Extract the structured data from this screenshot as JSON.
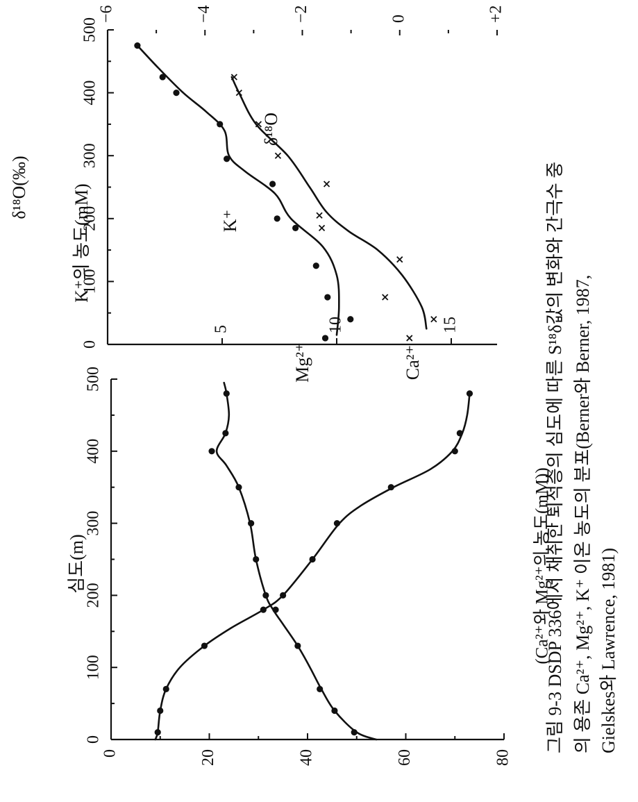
{
  "caption": {
    "lines": [
      "그림 9-3  DSDP 336에서 채취한 퇴적층의 심도에 따른 S¹⁸δ값의 변화와 간극수 중",
      "의 용존 Ca²⁺, Mg²⁺, K⁺ 이온 농도의 분포(Berner와 Berner, 1987,",
      "Gielskes와 Lawrence, 1981)"
    ]
  },
  "chart_data": [
    {
      "type": "line",
      "xlabel": "심도(m)",
      "ylabel": "(Ca²⁺와 Mg²⁺의 농도(mM))",
      "xlim": [
        0,
        500
      ],
      "ylim": [
        0,
        80
      ],
      "xticks": [
        0,
        100,
        200,
        300,
        400,
        500
      ],
      "yticks": [
        0,
        20,
        40,
        60,
        80
      ],
      "series": [
        {
          "name": "Ca²⁺",
          "points": [
            [
              10,
              9.5
            ],
            [
              40,
              10
            ],
            [
              70,
              11.2
            ],
            [
              130,
              19
            ],
            [
              180,
              31
            ],
            [
              200,
              35
            ],
            [
              250,
              41
            ],
            [
              300,
              46
            ],
            [
              350,
              57
            ],
            [
              400,
              70
            ],
            [
              425,
              71
            ],
            [
              480,
              73
            ]
          ],
          "curve": [
            [
              0,
              9
            ],
            [
              10,
              9.5
            ],
            [
              40,
              10
            ],
            [
              70,
              11.2
            ],
            [
              100,
              14
            ],
            [
              130,
              19
            ],
            [
              155,
              24.5
            ],
            [
              180,
              31
            ],
            [
              200,
              35
            ],
            [
              250,
              41
            ],
            [
              300,
              46.5
            ],
            [
              325,
              51
            ],
            [
              350,
              57.5
            ],
            [
              375,
              65
            ],
            [
              400,
              69.5
            ],
            [
              425,
              71.5
            ],
            [
              450,
              72.5
            ],
            [
              480,
              73
            ]
          ]
        },
        {
          "name": "Mg²⁺",
          "points": [
            [
              10,
              49.5
            ],
            [
              40,
              45.5
            ],
            [
              70,
              42.5
            ],
            [
              130,
              38
            ],
            [
              180,
              33.5
            ],
            [
              200,
              31.5
            ],
            [
              250,
              29.5
            ],
            [
              300,
              28.5
            ],
            [
              350,
              26
            ],
            [
              400,
              20.5
            ],
            [
              425,
              23.3
            ],
            [
              480,
              23.5
            ]
          ],
          "curve": [
            [
              0,
              54
            ],
            [
              10,
              50
            ],
            [
              40,
              45.5
            ],
            [
              70,
              42.8
            ],
            [
              100,
              40.5
            ],
            [
              130,
              38
            ],
            [
              160,
              35
            ],
            [
              180,
              33
            ],
            [
              200,
              31.5
            ],
            [
              250,
              29.5
            ],
            [
              300,
              28.3
            ],
            [
              350,
              26
            ],
            [
              380,
              23.5
            ],
            [
              400,
              21.5
            ],
            [
              425,
              23.3
            ],
            [
              450,
              24
            ],
            [
              480,
              23.5
            ],
            [
              495,
              23
            ]
          ]
        }
      ]
    },
    {
      "type": "line",
      "xlim": [
        0,
        500
      ],
      "xticks": [
        0,
        100,
        200,
        300,
        400,
        500
      ],
      "left_axis": {
        "label": "K⁺의 농도(mM)",
        "ticks": [
          5,
          10,
          15
        ],
        "lim": [
          0,
          17
        ]
      },
      "right_axis": {
        "label": "δ¹⁸O(‰)",
        "ticks": [
          -6,
          -4,
          -2,
          0,
          2
        ],
        "tick_labels": [
          "−6",
          "−4",
          "−2",
          "0",
          "+2"
        ],
        "lim": [
          -6,
          2
        ]
      },
      "series": [
        {
          "name": "K⁺",
          "axis": "left",
          "points": [
            [
              10,
              9.5
            ],
            [
              40,
              10.6
            ],
            [
              75,
              9.6
            ],
            [
              125,
              9.1
            ],
            [
              185,
              8.2
            ],
            [
              200,
              7.4
            ],
            [
              255,
              7.2
            ],
            [
              295,
              5.2
            ],
            [
              350,
              4.9
            ],
            [
              400,
              3.0
            ],
            [
              425,
              2.4
            ],
            [
              475,
              1.3
            ]
          ],
          "curve": [
            [
              15,
              10
            ],
            [
              60,
              10.1
            ],
            [
              110,
              10
            ],
            [
              155,
              9.4
            ],
            [
              200,
              8
            ],
            [
              240,
              7.3
            ],
            [
              275,
              6
            ],
            [
              300,
              5.3
            ],
            [
              340,
              5.1
            ],
            [
              370,
              4.3
            ],
            [
              400,
              3.3
            ],
            [
              440,
              2.2
            ],
            [
              475,
              1.3
            ]
          ]
        },
        {
          "name": "δ¹⁸O",
          "axis": "right",
          "points": [
            [
              10,
              0.2
            ],
            [
              40,
              0.7
            ],
            [
              75,
              -0.3
            ],
            [
              135,
              0
            ],
            [
              185,
              -1.6
            ],
            [
              205,
              -1.65
            ],
            [
              255,
              -1.5
            ],
            [
              300,
              -2.5
            ],
            [
              350,
              -2.9
            ],
            [
              400,
              -3.3
            ],
            [
              425,
              -3.4
            ]
          ],
          "curve": [
            [
              25,
              0.55
            ],
            [
              60,
              0.45
            ],
            [
              110,
              0.05
            ],
            [
              150,
              -0.45
            ],
            [
              180,
              -1.05
            ],
            [
              210,
              -1.5
            ],
            [
              250,
              -1.85
            ],
            [
              300,
              -2.3
            ],
            [
              350,
              -2.95
            ],
            [
              400,
              -3.3
            ],
            [
              425,
              -3.45
            ]
          ]
        }
      ]
    }
  ]
}
